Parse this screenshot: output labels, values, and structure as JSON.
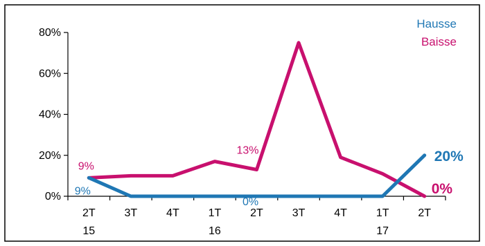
{
  "chart_data": {
    "type": "line",
    "categories": [
      [
        "2T",
        "15"
      ],
      [
        "3T",
        ""
      ],
      [
        "4T",
        ""
      ],
      [
        "1T",
        "16"
      ],
      [
        "2T",
        ""
      ],
      [
        "3T",
        ""
      ],
      [
        "4T",
        ""
      ],
      [
        "1T",
        "17"
      ],
      [
        "2T",
        ""
      ]
    ],
    "ylim": [
      0,
      80
    ],
    "yticks": [
      "0%",
      "20%",
      "40%",
      "60%",
      "80%"
    ],
    "ytick_values": [
      0,
      20,
      40,
      60,
      80
    ],
    "grid": true,
    "legend_position": "top-right",
    "series": [
      {
        "name": "Hausse",
        "color": "#1f77b4",
        "values": [
          9,
          0,
          0,
          0,
          0,
          0,
          0,
          0,
          20
        ]
      },
      {
        "name": "Baisse",
        "color": "#c8106e",
        "values": [
          9,
          10,
          10,
          17,
          13,
          75,
          19,
          11,
          0
        ]
      }
    ],
    "data_labels": [
      {
        "series": "Hausse",
        "index": 0,
        "text": "9%"
      },
      {
        "series": "Hausse",
        "index": 4,
        "text": "0%"
      },
      {
        "series": "Baisse",
        "index": 0,
        "text": "9%"
      },
      {
        "series": "Baisse",
        "index": 4,
        "text": "13%"
      }
    ],
    "end_labels": [
      {
        "series": "Hausse",
        "text": "20%"
      },
      {
        "series": "Baisse",
        "text": "0%"
      }
    ]
  }
}
